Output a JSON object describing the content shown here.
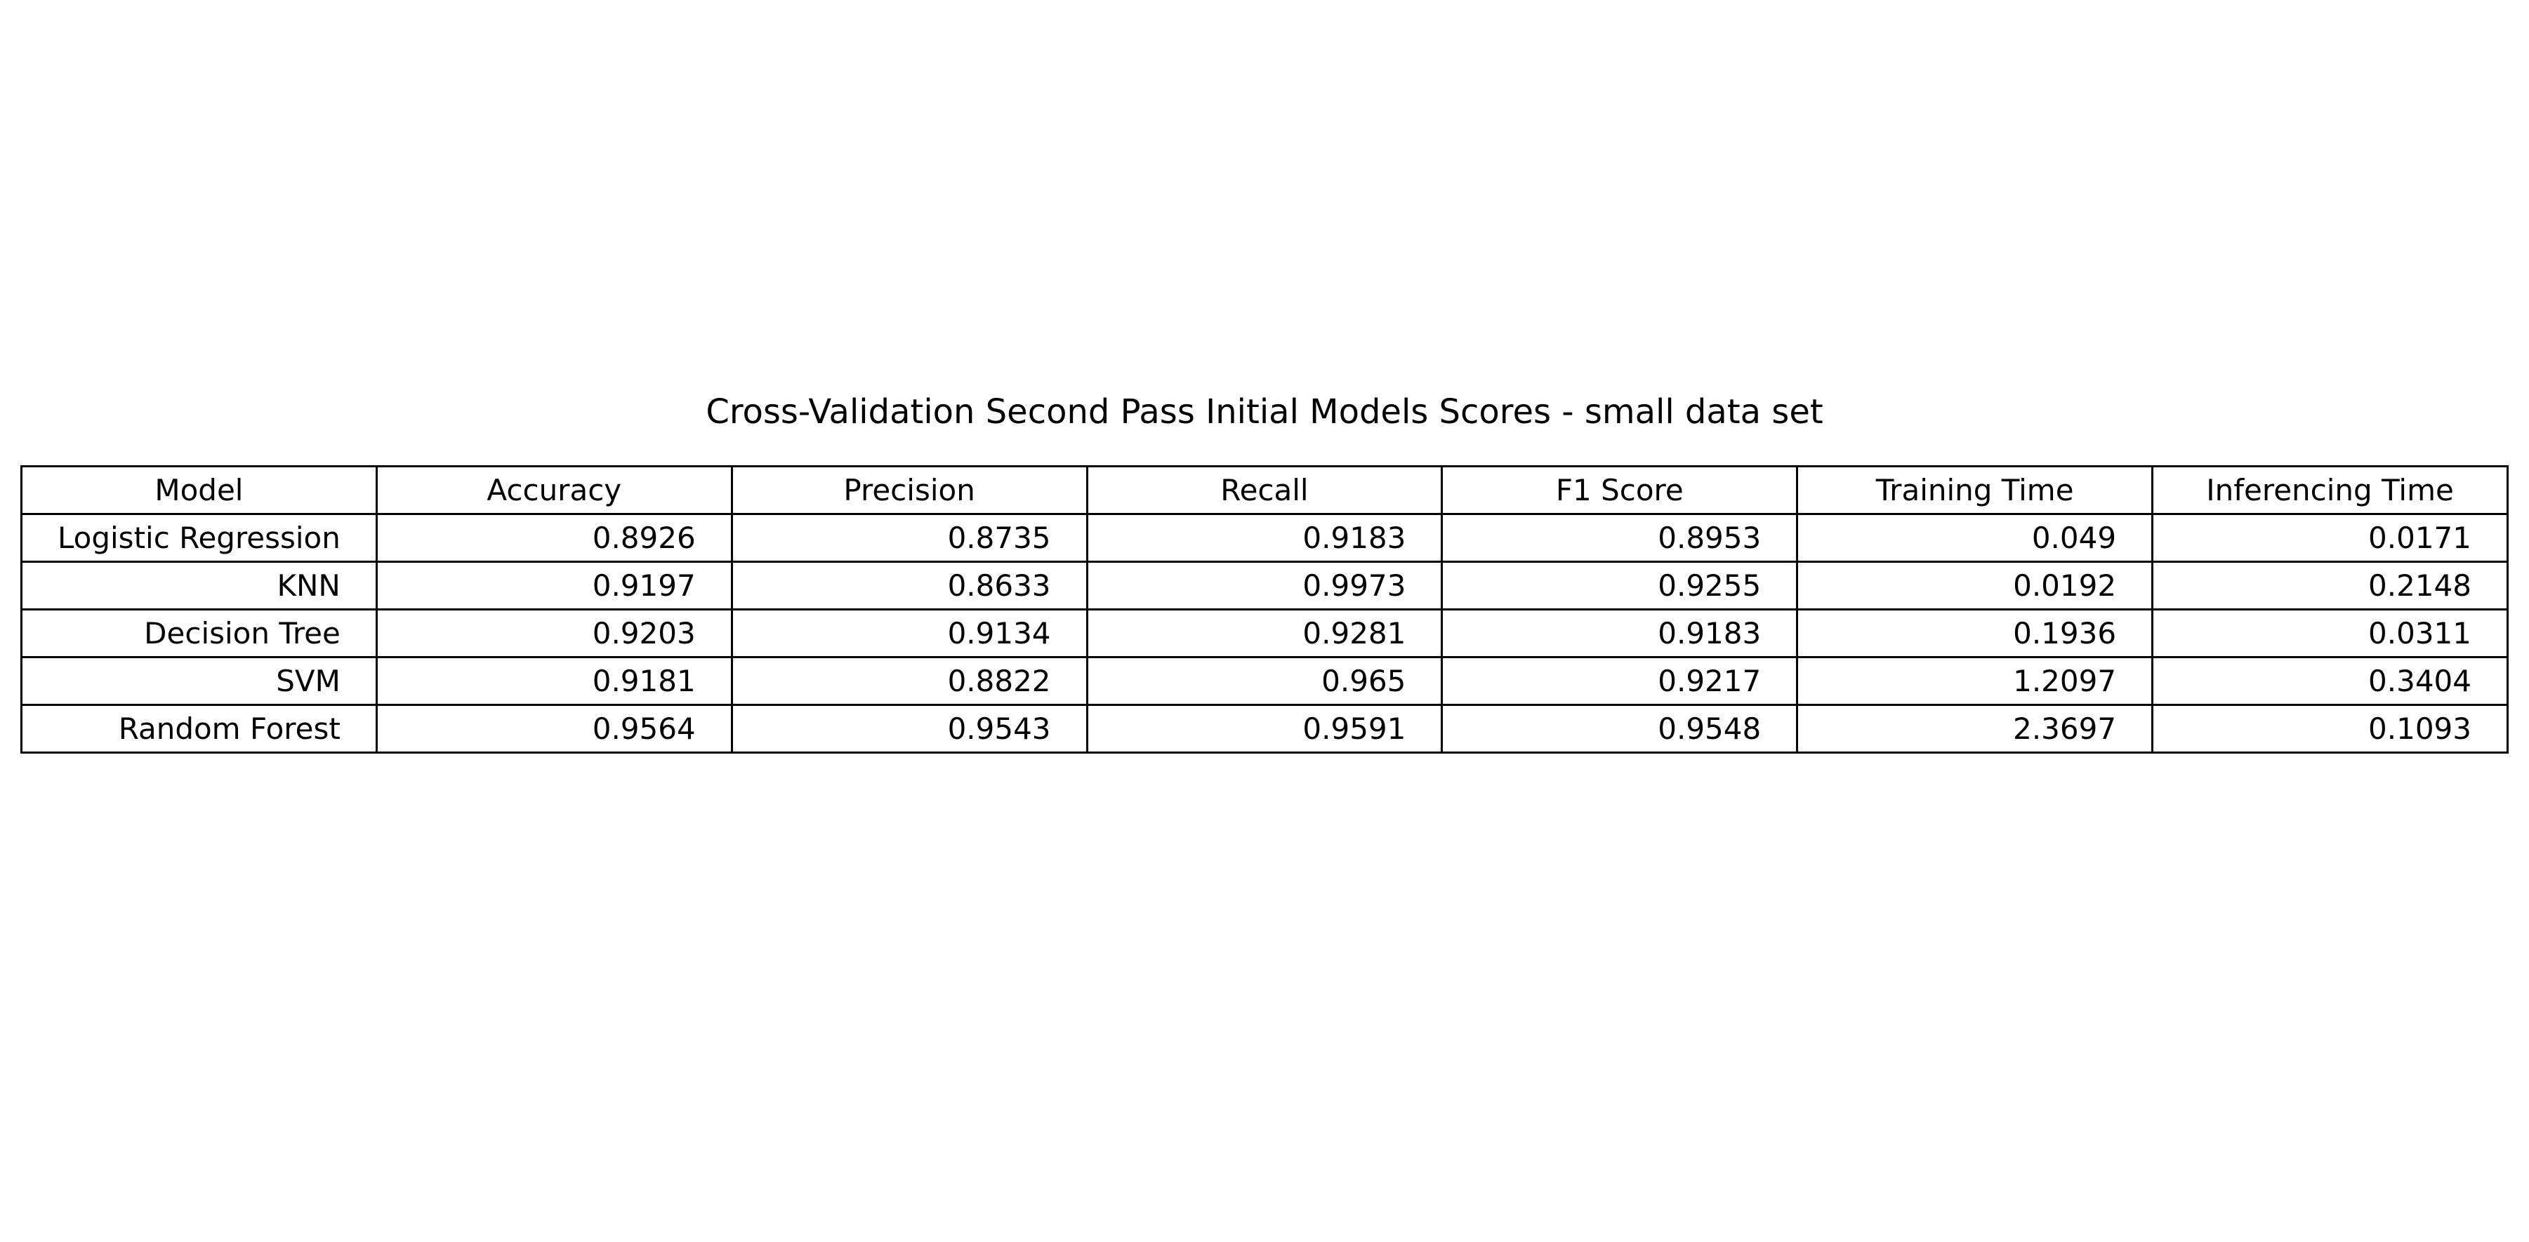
{
  "chart_data": {
    "type": "table",
    "title": "Cross-Validation Second Pass Initial Models Scores - small data set",
    "columns": [
      "Model",
      "Accuracy",
      "Precision",
      "Recall",
      "F1 Score",
      "Training Time",
      "Inferencing Time"
    ],
    "rows": [
      [
        "Logistic Regression",
        "0.8926",
        "0.8735",
        "0.9183",
        "0.8953",
        "0.049",
        "0.0171"
      ],
      [
        "KNN",
        "0.9197",
        "0.8633",
        "0.9973",
        "0.9255",
        "0.0192",
        "0.2148"
      ],
      [
        "Decision Tree",
        "0.9203",
        "0.9134",
        "0.9281",
        "0.9183",
        "0.1936",
        "0.0311"
      ],
      [
        "SVM",
        "0.9181",
        "0.8822",
        "0.965",
        "0.9217",
        "1.2097",
        "0.3404"
      ],
      [
        "Random Forest",
        "0.9564",
        "0.9543",
        "0.9591",
        "0.9548",
        "2.3697",
        "0.1093"
      ]
    ],
    "grid": true
  }
}
